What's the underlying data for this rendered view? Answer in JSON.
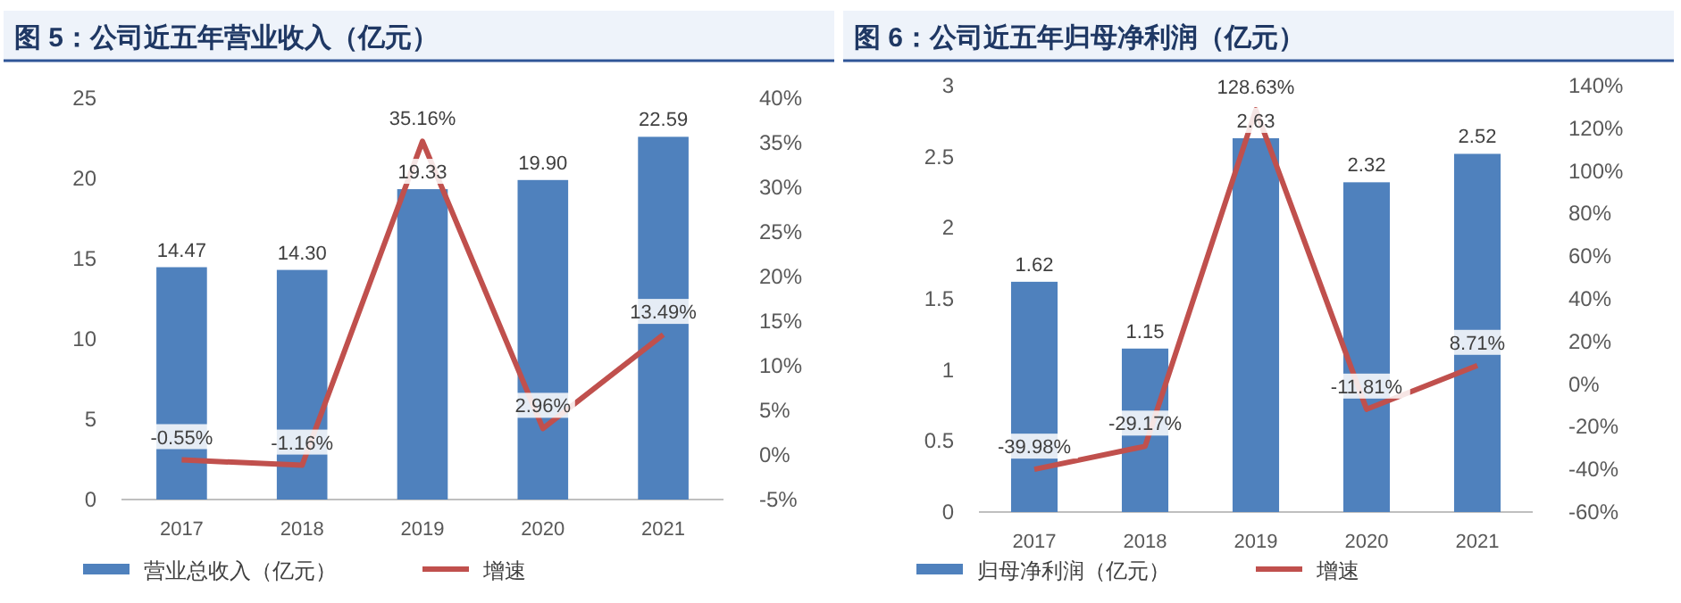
{
  "chart_data": [
    {
      "type": "bar",
      "title": "图 5：公司近五年营业收入（亿元）",
      "categories": [
        "2017",
        "2018",
        "2019",
        "2020",
        "2021"
      ],
      "series": [
        {
          "name": "营业总收入（亿元）",
          "color": "#4f81bd",
          "values": [
            14.47,
            14.3,
            19.33,
            19.9,
            22.59
          ],
          "value_labels": [
            "14.47",
            "14.30",
            "19.33",
            "19.90",
            "22.59"
          ]
        },
        {
          "name": "增速",
          "type": "line",
          "axis": "y2",
          "color": "#c0504d",
          "values": [
            -0.55,
            -1.16,
            35.16,
            2.96,
            13.49
          ],
          "value_labels": [
            "-0.55%",
            "-1.16%",
            "35.16%",
            "2.96%",
            "13.49%"
          ]
        }
      ],
      "ylim": [
        0,
        25
      ],
      "yticks": [
        0,
        5,
        10,
        15,
        20,
        25
      ],
      "y2lim": [
        -5,
        40
      ],
      "y2ticks": [
        {
          "value": -5,
          "label": "-5%"
        },
        {
          "value": 0,
          "label": "0%"
        },
        {
          "value": 5,
          "label": "5%"
        },
        {
          "value": 10,
          "label": "10%"
        },
        {
          "value": 15,
          "label": "15%"
        },
        {
          "value": 20,
          "label": "20%"
        },
        {
          "value": 25,
          "label": "25%"
        },
        {
          "value": 30,
          "label": "30%"
        },
        {
          "value": 35,
          "label": "35%"
        },
        {
          "value": 40,
          "label": "40%"
        }
      ],
      "legend": "bottom",
      "marker": "none",
      "line_style": "solid"
    },
    {
      "type": "bar",
      "title": "图 6：公司近五年归母净利润（亿元）",
      "categories": [
        "2017",
        "2018",
        "2019",
        "2020",
        "2021"
      ],
      "series": [
        {
          "name": "归母净利润（亿元）",
          "color": "#4f81bd",
          "values": [
            1.62,
            1.15,
            2.63,
            2.32,
            2.52
          ],
          "value_labels": [
            "1.62",
            "1.15",
            "2.63",
            "2.32",
            "2.52"
          ]
        },
        {
          "name": "增速",
          "type": "line",
          "axis": "y2",
          "color": "#c0504d",
          "values": [
            -39.98,
            -29.17,
            128.63,
            -11.81,
            8.71
          ],
          "value_labels": [
            "-39.98%",
            "-29.17%",
            "128.63%",
            "-11.81%",
            "8.71%"
          ]
        }
      ],
      "ylim": [
        0,
        3
      ],
      "yticks": [
        0,
        0.5,
        1,
        1.5,
        2,
        2.5,
        3
      ],
      "y2lim": [
        -60,
        140
      ],
      "y2ticks": [
        {
          "value": -60,
          "label": "-60%"
        },
        {
          "value": -40,
          "label": "-40%"
        },
        {
          "value": -20,
          "label": "-20%"
        },
        {
          "value": 0,
          "label": "0%"
        },
        {
          "value": 20,
          "label": "20%"
        },
        {
          "value": 40,
          "label": "40%"
        },
        {
          "value": 60,
          "label": "60%"
        },
        {
          "value": 80,
          "label": "80%"
        },
        {
          "value": 100,
          "label": "100%"
        },
        {
          "value": 120,
          "label": "120%"
        },
        {
          "value": 140,
          "label": "140%"
        }
      ],
      "legend": "bottom",
      "marker": "none",
      "line_style": "solid"
    }
  ]
}
